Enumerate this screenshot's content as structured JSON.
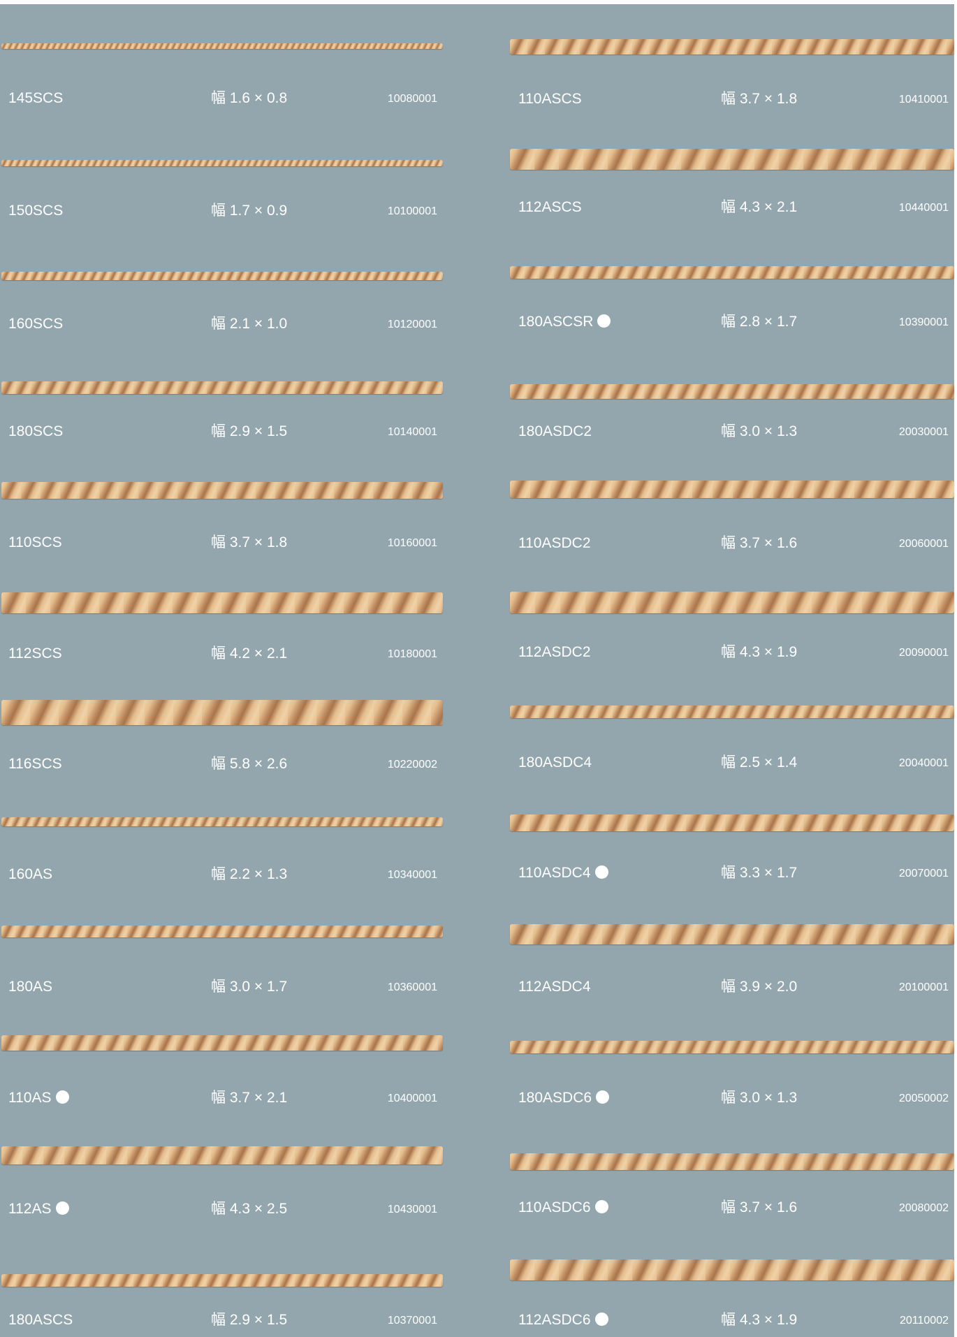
{
  "colors": {
    "background": "#93a6ae",
    "text": "#ffffff",
    "chain_gold": "#c99a6d"
  },
  "columns": [
    {
      "items": [
        {
          "code": "145SCS",
          "dot": false,
          "dimension": "幅 1.6 × 0.8",
          "number": "10080001"
        },
        {
          "code": "150SCS",
          "dot": false,
          "dimension": "幅 1.7 × 0.9",
          "number": "10100001"
        },
        {
          "code": "160SCS",
          "dot": false,
          "dimension": "幅 2.1 × 1.0",
          "number": "10120001"
        },
        {
          "code": "180SCS",
          "dot": false,
          "dimension": "幅 2.9 × 1.5",
          "number": "10140001"
        },
        {
          "code": "110SCS",
          "dot": false,
          "dimension": "幅 3.7 × 1.8",
          "number": "10160001"
        },
        {
          "code": "112SCS",
          "dot": false,
          "dimension": "幅 4.2 × 2.1",
          "number": "10180001"
        },
        {
          "code": "116SCS",
          "dot": false,
          "dimension": "幅 5.8 × 2.6",
          "number": "10220002"
        },
        {
          "code": "160AS",
          "dot": false,
          "dimension": "幅 2.2 × 1.3",
          "number": "10340001"
        },
        {
          "code": "180AS",
          "dot": false,
          "dimension": "幅 3.0 × 1.7",
          "number": "10360001"
        },
        {
          "code": "110AS",
          "dot": true,
          "dimension": "幅 3.7 × 2.1",
          "number": "10400001"
        },
        {
          "code": "112AS",
          "dot": true,
          "dimension": "幅 4.3 × 2.5",
          "number": "10430001"
        },
        {
          "code": "180ASCS",
          "dot": false,
          "dimension": "幅 2.9 × 1.5",
          "number": "10370001"
        }
      ]
    },
    {
      "items": [
        {
          "code": "110ASCS",
          "dot": false,
          "dimension": "幅 3.7 × 1.8",
          "number": "10410001"
        },
        {
          "code": "112ASCS",
          "dot": false,
          "dimension": "幅 4.3 × 2.1",
          "number": "10440001"
        },
        {
          "code": "180ASCSR",
          "dot": true,
          "dimension": "幅 2.8 × 1.7",
          "number": "10390001"
        },
        {
          "code": "180ASDC2",
          "dot": false,
          "dimension": "幅 3.0 × 1.3",
          "number": "20030001"
        },
        {
          "code": "110ASDC2",
          "dot": false,
          "dimension": "幅 3.7 × 1.6",
          "number": "20060001"
        },
        {
          "code": "112ASDC2",
          "dot": false,
          "dimension": "幅 4.3 × 1.9",
          "number": "20090001"
        },
        {
          "code": "180ASDC4",
          "dot": false,
          "dimension": "幅 2.5 × 1.4",
          "number": "20040001"
        },
        {
          "code": "110ASDC4",
          "dot": true,
          "dimension": "幅 3.3 × 1.7",
          "number": "20070001"
        },
        {
          "code": "112ASDC4",
          "dot": false,
          "dimension": "幅 3.9 × 2.0",
          "number": "20100001"
        },
        {
          "code": "180ASDC6",
          "dot": true,
          "dimension": "幅 3.0 × 1.3",
          "number": "20050002"
        },
        {
          "code": "110ASDC6",
          "dot": true,
          "dimension": "幅 3.7 × 1.6",
          "number": "20080002"
        },
        {
          "code": "112ASDC6",
          "dot": true,
          "dimension": "幅 4.3 × 1.9",
          "number": "20110002"
        }
      ]
    }
  ]
}
